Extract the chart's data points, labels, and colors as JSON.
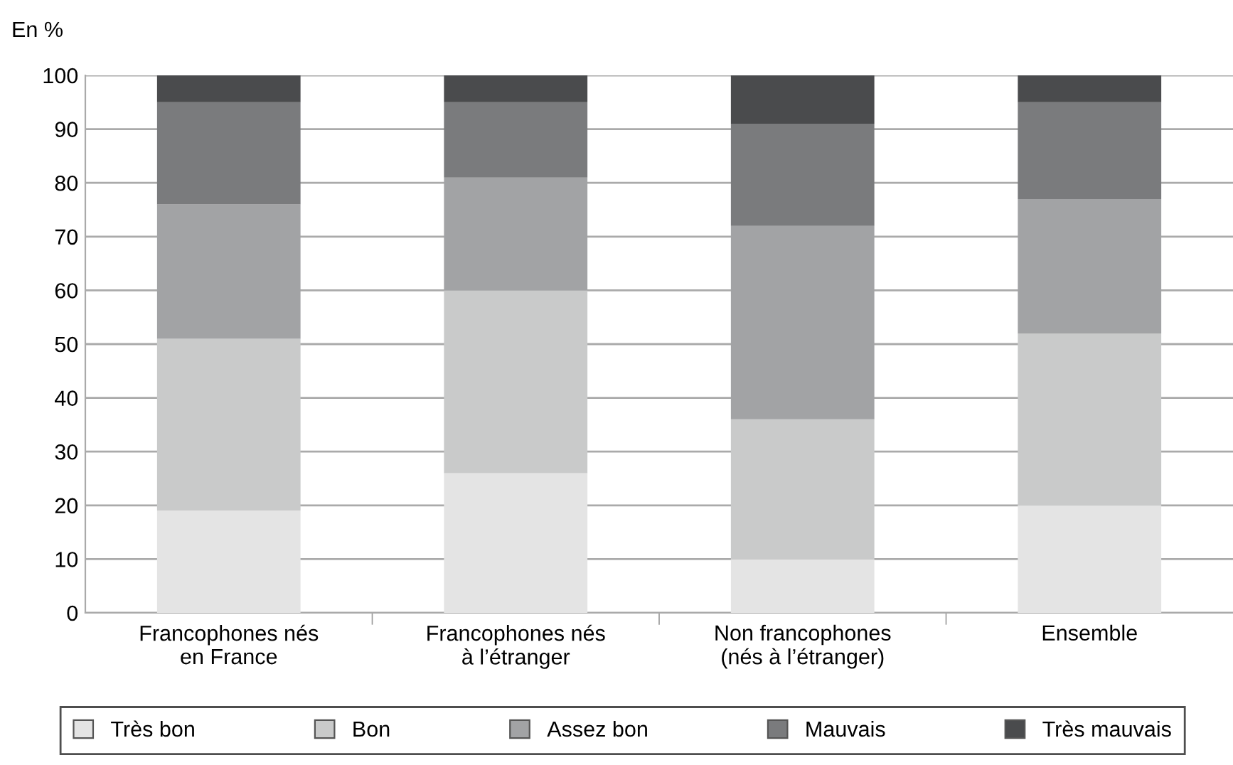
{
  "chart_data": {
    "type": "bar",
    "stacked": true,
    "ylabel": "En %",
    "categories": [
      "Francophones nés\nen France",
      "Francophones nés\nà l’étranger",
      "Non francophones\n(nés à l’étranger)",
      "Ensemble"
    ],
    "series": [
      {
        "name": "Très bon",
        "color": "#e4e4e4",
        "values": [
          19,
          26,
          10,
          20
        ]
      },
      {
        "name": "Bon",
        "color": "#c9caca",
        "values": [
          32,
          34,
          26,
          32
        ]
      },
      {
        "name": "Assez bon",
        "color": "#a2a3a5",
        "values": [
          25,
          21,
          36,
          25
        ]
      },
      {
        "name": "Mauvais",
        "color": "#7a7b7d",
        "values": [
          19,
          14,
          19,
          18
        ]
      },
      {
        "name": "Très mauvais",
        "color": "#4a4b4d",
        "values": [
          5,
          5,
          9,
          5
        ]
      }
    ],
    "ylim": [
      0,
      100
    ],
    "yticks": [
      0,
      10,
      20,
      30,
      40,
      50,
      60,
      70,
      80,
      90,
      100
    ],
    "grid": "y",
    "legend": "bottom"
  }
}
